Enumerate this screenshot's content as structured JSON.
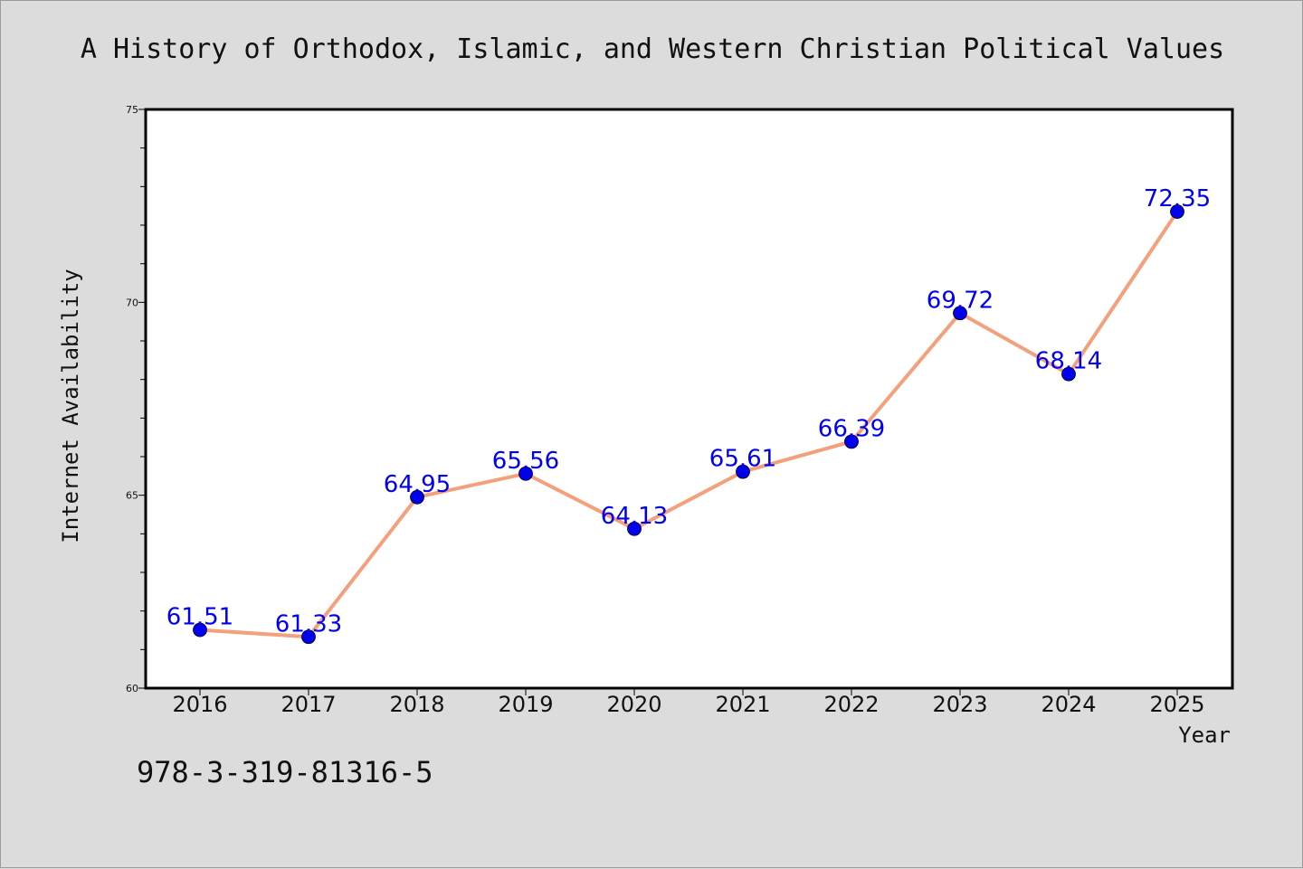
{
  "chart_data": {
    "type": "line",
    "title": "A History of Orthodox, Islamic, and Western Christian Political Values",
    "xlabel": "Year",
    "ylabel": "Internet Availability",
    "x": [
      "2016",
      "2017",
      "2018",
      "2019",
      "2020",
      "2021",
      "2022",
      "2023",
      "2024",
      "2025"
    ],
    "series": [
      {
        "values": [
          61.51,
          61.33,
          64.95,
          65.56,
          64.13,
          65.61,
          66.39,
          69.72,
          68.14,
          72.35
        ],
        "labels": [
          "61.51",
          "61.33",
          "64.95",
          "65.56",
          "64.13",
          "65.61",
          "66.39",
          "69.72",
          "68.14",
          "72.35"
        ],
        "line_color": "#f4a07c",
        "marker_color": "#0000ee"
      }
    ],
    "ylim": [
      60,
      75
    ],
    "yticks": [
      "60",
      "65",
      "70",
      "75"
    ],
    "minor_ytick_step": 1,
    "grid": false,
    "legend": "none"
  },
  "footer": {
    "isbn": "978-3-319-81316-5"
  }
}
